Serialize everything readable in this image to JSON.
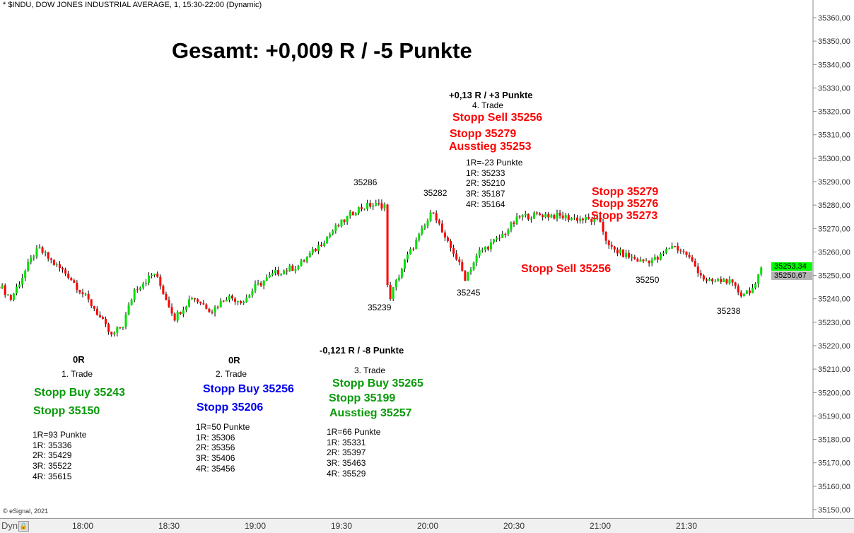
{
  "window_title": "* $INDU, DOW JONES INDUSTRIAL AVERAGE, 1, 15:30-22:00 (Dynamic)",
  "copyright": "© eSignal, 2021",
  "bottom_bar": {
    "dyn_label": "Dyn",
    "lock_icon": "lock-icon"
  },
  "colors": {
    "up": "#00e000",
    "down": "#ff0000",
    "green_text": "#0a9a0a",
    "red_text": "#ff0000",
    "blue_text": "#0000ee",
    "last_price_tag": "#00ff00",
    "prev_price_tag": "#b4b4b4"
  },
  "headline": "Gesamt: +0,009 R / -5 Punkte",
  "trades": [
    {
      "result": "0R",
      "name": "1. Trade",
      "entry": "Stopp Buy 35243",
      "stop": "Stopp 35150",
      "levels": [
        "1R=93 Punkte",
        "1R: 35336",
        "2R: 35429",
        "3R: 35522",
        "4R: 35615"
      ]
    },
    {
      "result": "0R",
      "name": "2. Trade",
      "entry": "Stopp Buy 35256",
      "stop": "Stopp 35206",
      "levels": [
        "1R=50 Punkte",
        "1R: 35306",
        "2R: 35356",
        "3R: 35406",
        "4R: 35456"
      ]
    },
    {
      "result": "-0,121 R / -8 Punkte",
      "name": "3. Trade",
      "entry": "Stopp Buy 35265",
      "stop": "Stopp 35199",
      "exit": "Ausstieg 35257",
      "levels": [
        "1R=66 Punkte",
        "1R: 35331",
        "2R: 35397",
        "3R: 35463",
        "4R: 35529"
      ]
    },
    {
      "result": "+0,13 R / +3 Punkte",
      "name": "4. Trade",
      "entry": "Stopp Sell 35256",
      "stop": "Stopp 35279",
      "exit": "Ausstieg 35253",
      "levels": [
        "1R=-23 Punkte",
        "1R: 35233",
        "2R: 35210",
        "3R: 35187",
        "4R: 35164"
      ]
    }
  ],
  "extra_annotations": {
    "stop1": "Stopp 35279",
    "stop2": "Stopp 35276",
    "stop3": "Stopp 35273",
    "sell": "Stopp Sell 35256"
  },
  "price_labels": [
    "35286",
    "35282",
    "35239",
    "35245",
    "35250",
    "35238"
  ],
  "chart_data": {
    "type": "candlestick",
    "interval": "1 min",
    "ylim": [
      35150,
      35360
    ],
    "y_ticks": [
      "35360,00",
      "35350,00",
      "35340,00",
      "35330,00",
      "35320,00",
      "35310,00",
      "35300,00",
      "35290,00",
      "35280,00",
      "35270,00",
      "35260,00",
      "35250,00",
      "35240,00",
      "35230,00",
      "35220,00",
      "35210,00",
      "35200,00",
      "35190,00",
      "35180,00",
      "35170,00",
      "35160,00",
      "35150,00"
    ],
    "x_ticks": [
      "18:00",
      "18:30",
      "19:00",
      "19:30",
      "20:00",
      "20:30",
      "21:00",
      "21:30"
    ],
    "x_range": [
      "17:31",
      "21:56"
    ],
    "last_price": "35253,34",
    "prev_price": "35250,67",
    "close_path": [
      [
        "17:31",
        35246
      ],
      [
        "17:35",
        35240
      ],
      [
        "17:43",
        35259
      ],
      [
        "17:45",
        35261
      ],
      [
        "17:50",
        35255
      ],
      [
        "17:55",
        35250
      ],
      [
        "18:04",
        35236
      ],
      [
        "18:10",
        35224
      ],
      [
        "18:14",
        35229
      ],
      [
        "18:18",
        35244
      ],
      [
        "18:25",
        35251
      ],
      [
        "18:32",
        35232
      ],
      [
        "18:38",
        35241
      ],
      [
        "18:45",
        35235
      ],
      [
        "18:50",
        35241
      ],
      [
        "18:56",
        35239
      ],
      [
        "19:00",
        35245
      ],
      [
        "19:07",
        35251
      ],
      [
        "19:15",
        35254
      ],
      [
        "19:20",
        35260
      ],
      [
        "19:27",
        35269
      ],
      [
        "19:35",
        35278
      ],
      [
        "19:40",
        35280
      ],
      [
        "19:45",
        35280
      ],
      [
        "19:46",
        35245
      ],
      [
        "19:47",
        35241
      ],
      [
        "19:52",
        35256
      ],
      [
        "19:59",
        35271
      ],
      [
        "20:02",
        35278
      ],
      [
        "20:06",
        35265
      ],
      [
        "20:09",
        35260
      ],
      [
        "20:13",
        35249
      ],
      [
        "20:18",
        35260
      ],
      [
        "20:25",
        35266
      ],
      [
        "20:32",
        35275
      ],
      [
        "20:40",
        35276
      ],
      [
        "20:47",
        35275
      ],
      [
        "20:54",
        35274
      ],
      [
        "21:00",
        35273
      ],
      [
        "21:03",
        35262
      ],
      [
        "21:08",
        35259
      ],
      [
        "21:14",
        35256
      ],
      [
        "21:20",
        35257
      ],
      [
        "21:25",
        35263
      ],
      [
        "21:30",
        35259
      ],
      [
        "21:37",
        35247
      ],
      [
        "21:44",
        35248
      ],
      [
        "21:49",
        35242
      ],
      [
        "21:54",
        35245
      ],
      [
        "21:56",
        35253.34
      ]
    ]
  }
}
